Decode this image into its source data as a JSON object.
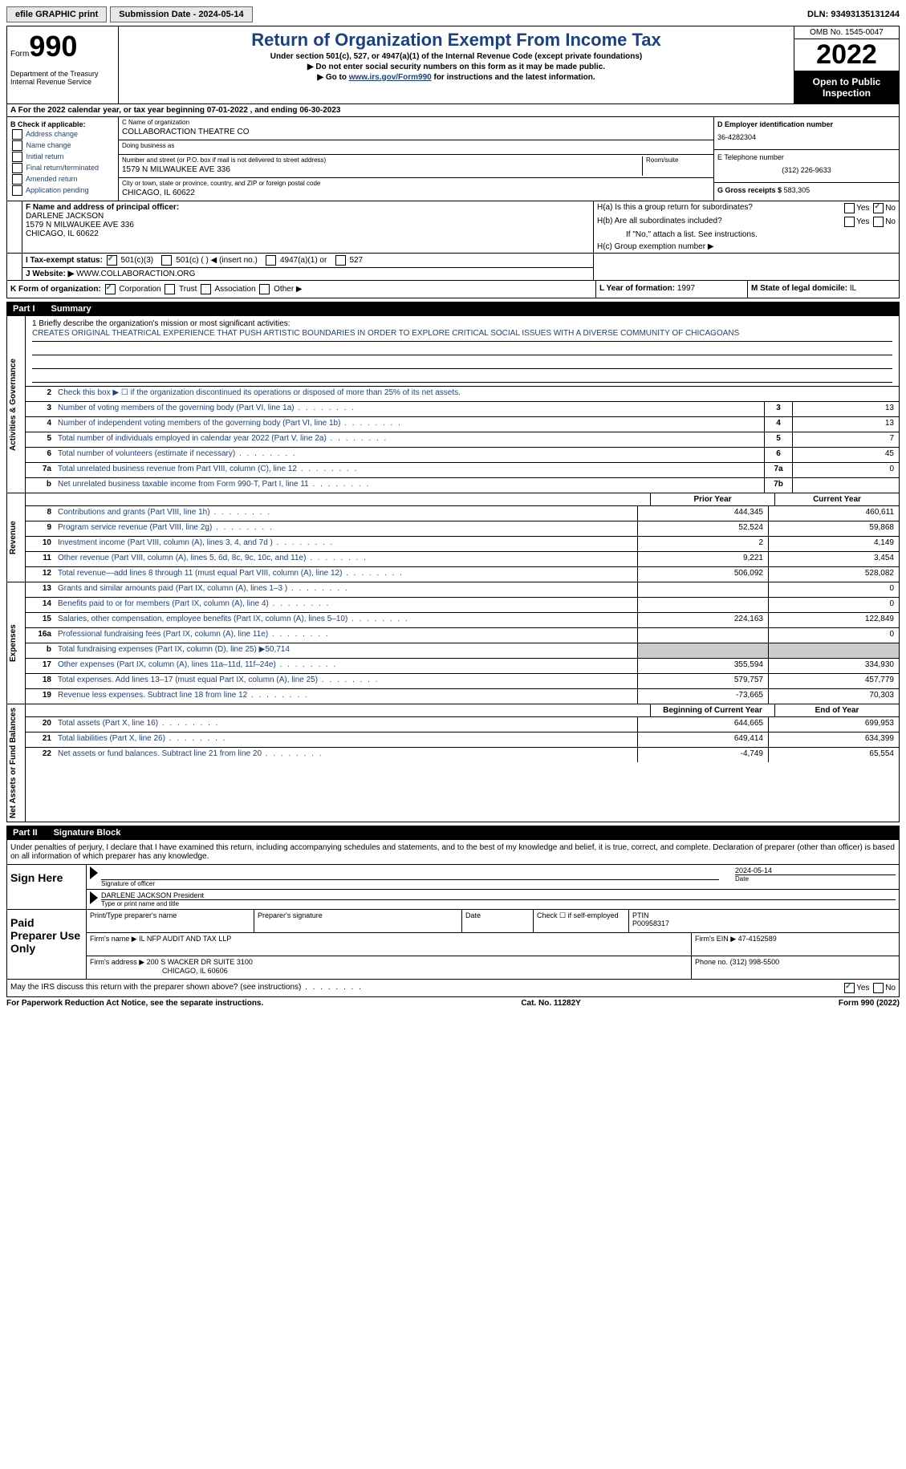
{
  "topbar": {
    "efile": "efile GRAPHIC print",
    "submission": "Submission Date - 2024-05-14",
    "dln": "DLN: 93493135131244"
  },
  "header": {
    "form_label": "Form",
    "form_num": "990",
    "dept": "Department of the Treasury\nInternal Revenue Service",
    "title": "Return of Organization Exempt From Income Tax",
    "sub1": "Under section 501(c), 527, or 4947(a)(1) of the Internal Revenue Code (except private foundations)",
    "sub2": "▶ Do not enter social security numbers on this form as it may be made public.",
    "sub3_pre": "▶ Go to ",
    "sub3_link": "www.irs.gov/Form990",
    "sub3_post": " for instructions and the latest information.",
    "omb": "OMB No. 1545-0047",
    "year": "2022",
    "open": "Open to Public Inspection"
  },
  "rowA": "A For the 2022 calendar year, or tax year beginning 07-01-2022    , and ending 06-30-2023",
  "colB": {
    "header": "B Check if applicable:",
    "opts": [
      "Address change",
      "Name change",
      "Initial return",
      "Final return/terminated",
      "Amended return",
      "Application pending"
    ]
  },
  "colC": {
    "name_label": "C Name of organization",
    "name": "COLLABORACTION THEATRE CO",
    "dba_label": "Doing business as",
    "dba": "",
    "addr_label": "Number and street (or P.O. box if mail is not delivered to street address)",
    "room_label": "Room/suite",
    "addr": "1579 N MILWAUKEE AVE 336",
    "city_label": "City or town, state or province, country, and ZIP or foreign postal code",
    "city": "CHICAGO, IL  60622"
  },
  "colDE": {
    "d_label": "D Employer identification number",
    "d_val": "36-4282304",
    "e_label": "E Telephone number",
    "e_val": "(312) 226-9633",
    "g_label": "G Gross receipts $",
    "g_val": "583,305"
  },
  "rowF": {
    "label": "F Name and address of principal officer:",
    "name": "DARLENE JACKSON",
    "addr1": "1579 N MILWAUKEE AVE 336",
    "addr2": "CHICAGO, IL  60622"
  },
  "rowH": {
    "ha": "H(a)  Is this a group return for subordinates?",
    "hb": "H(b)  Are all subordinates included?",
    "hb_note": "If \"No,\" attach a list. See instructions.",
    "hc": "H(c)  Group exemption number ▶"
  },
  "rowI": {
    "label": "I    Tax-exempt status:",
    "o1": "501(c)(3)",
    "o2": "501(c) (  ) ◀ (insert no.)",
    "o3": "4947(a)(1) or",
    "o4": "527"
  },
  "rowJ": {
    "label": "J    Website: ▶",
    "val": "WWW.COLLABORACTION.ORG"
  },
  "rowK": {
    "label": "K Form of organization:",
    "o1": "Corporation",
    "o2": "Trust",
    "o3": "Association",
    "o4": "Other ▶",
    "l_label": "L Year of formation:",
    "l_val": "1997",
    "m_label": "M State of legal domicile:",
    "m_val": "IL"
  },
  "part1": {
    "label": "Part I",
    "title": "Summary"
  },
  "mission": {
    "label": "1   Briefly describe the organization's mission or most significant activities:",
    "text": "CREATES ORIGINAL THEATRICAL EXPERIENCE THAT PUSH ARTISTIC BOUNDARIES IN ORDER TO EXPLORE CRITICAL SOCIAL ISSUES WITH A DIVERSE COMMUNITY OF CHICAGOANS"
  },
  "gov_rows": [
    {
      "n": "2",
      "d": "Check this box ▶ ☐  if the organization discontinued its operations or disposed of more than 25% of its net assets."
    },
    {
      "n": "3",
      "d": "Number of voting members of the governing body (Part VI, line 1a)",
      "b": "3",
      "v": "13"
    },
    {
      "n": "4",
      "d": "Number of independent voting members of the governing body (Part VI, line 1b)",
      "b": "4",
      "v": "13"
    },
    {
      "n": "5",
      "d": "Total number of individuals employed in calendar year 2022 (Part V, line 2a)",
      "b": "5",
      "v": "7"
    },
    {
      "n": "6",
      "d": "Total number of volunteers (estimate if necessary)",
      "b": "6",
      "v": "45"
    },
    {
      "n": "7a",
      "d": "Total unrelated business revenue from Part VIII, column (C), line 12",
      "b": "7a",
      "v": "0"
    },
    {
      "n": "b",
      "d": "Net unrelated business taxable income from Form 990-T, Part I, line 11",
      "b": "7b",
      "v": ""
    }
  ],
  "col_headers": {
    "prior": "Prior Year",
    "current": "Current Year"
  },
  "rev_rows": [
    {
      "n": "8",
      "d": "Contributions and grants (Part VIII, line 1h)",
      "p": "444,345",
      "c": "460,611"
    },
    {
      "n": "9",
      "d": "Program service revenue (Part VIII, line 2g)",
      "p": "52,524",
      "c": "59,868"
    },
    {
      "n": "10",
      "d": "Investment income (Part VIII, column (A), lines 3, 4, and 7d )",
      "p": "2",
      "c": "4,149"
    },
    {
      "n": "11",
      "d": "Other revenue (Part VIII, column (A), lines 5, 6d, 8c, 9c, 10c, and 11e)",
      "p": "9,221",
      "c": "3,454"
    },
    {
      "n": "12",
      "d": "Total revenue—add lines 8 through 11 (must equal Part VIII, column (A), line 12)",
      "p": "506,092",
      "c": "528,082"
    }
  ],
  "exp_rows": [
    {
      "n": "13",
      "d": "Grants and similar amounts paid (Part IX, column (A), lines 1–3 )",
      "p": "",
      "c": "0"
    },
    {
      "n": "14",
      "d": "Benefits paid to or for members (Part IX, column (A), line 4)",
      "p": "",
      "c": "0"
    },
    {
      "n": "15",
      "d": "Salaries, other compensation, employee benefits (Part IX, column (A), lines 5–10)",
      "p": "224,163",
      "c": "122,849"
    },
    {
      "n": "16a",
      "d": "Professional fundraising fees (Part IX, column (A), line 11e)",
      "p": "",
      "c": "0"
    },
    {
      "n": "b",
      "d": "Total fundraising expenses (Part IX, column (D), line 25) ▶50,714",
      "shaded": true
    },
    {
      "n": "17",
      "d": "Other expenses (Part IX, column (A), lines 11a–11d, 11f–24e)",
      "p": "355,594",
      "c": "334,930"
    },
    {
      "n": "18",
      "d": "Total expenses. Add lines 13–17 (must equal Part IX, column (A), line 25)",
      "p": "579,757",
      "c": "457,779"
    },
    {
      "n": "19",
      "d": "Revenue less expenses. Subtract line 18 from line 12",
      "p": "-73,665",
      "c": "70,303"
    }
  ],
  "net_headers": {
    "begin": "Beginning of Current Year",
    "end": "End of Year"
  },
  "net_rows": [
    {
      "n": "20",
      "d": "Total assets (Part X, line 16)",
      "p": "644,665",
      "c": "699,953"
    },
    {
      "n": "21",
      "d": "Total liabilities (Part X, line 26)",
      "p": "649,414",
      "c": "634,399"
    },
    {
      "n": "22",
      "d": "Net assets or fund balances. Subtract line 21 from line 20",
      "p": "-4,749",
      "c": "65,554"
    }
  ],
  "vert_labels": {
    "gov": "Activities & Governance",
    "rev": "Revenue",
    "exp": "Expenses",
    "net": "Net Assets or Fund Balances"
  },
  "part2": {
    "label": "Part II",
    "title": "Signature Block"
  },
  "penalty": "Under penalties of perjury, I declare that I have examined this return, including accompanying schedules and statements, and to the best of my knowledge and belief, it is true, correct, and complete. Declaration of preparer (other than officer) is based on all information of which preparer has any knowledge.",
  "sign": {
    "here": "Sign Here",
    "sig_label": "Signature of officer",
    "date_label": "Date",
    "date": "2024-05-14",
    "name": "DARLENE JACKSON President",
    "name_label": "Type or print name and title"
  },
  "prep": {
    "title": "Paid Preparer Use Only",
    "name_label": "Print/Type preparer's name",
    "sig_label": "Preparer's signature",
    "date_label": "Date",
    "check_label": "Check ☐ if self-employed",
    "ptin_label": "PTIN",
    "ptin": "P00958317",
    "firm_name_label": "Firm's name    ▶",
    "firm_name": "IL NFP AUDIT AND TAX LLP",
    "firm_ein_label": "Firm's EIN ▶",
    "firm_ein": "47-4152589",
    "firm_addr_label": "Firm's address ▶",
    "firm_addr": "200 S WACKER DR SUITE 3100",
    "firm_city": "CHICAGO, IL  60606",
    "phone_label": "Phone no.",
    "phone": "(312) 998-5500"
  },
  "discuss": "May the IRS discuss this return with the preparer shown above? (see instructions)",
  "footer": {
    "left": "For Paperwork Reduction Act Notice, see the separate instructions.",
    "mid": "Cat. No. 11282Y",
    "right": "Form 990 (2022)"
  }
}
